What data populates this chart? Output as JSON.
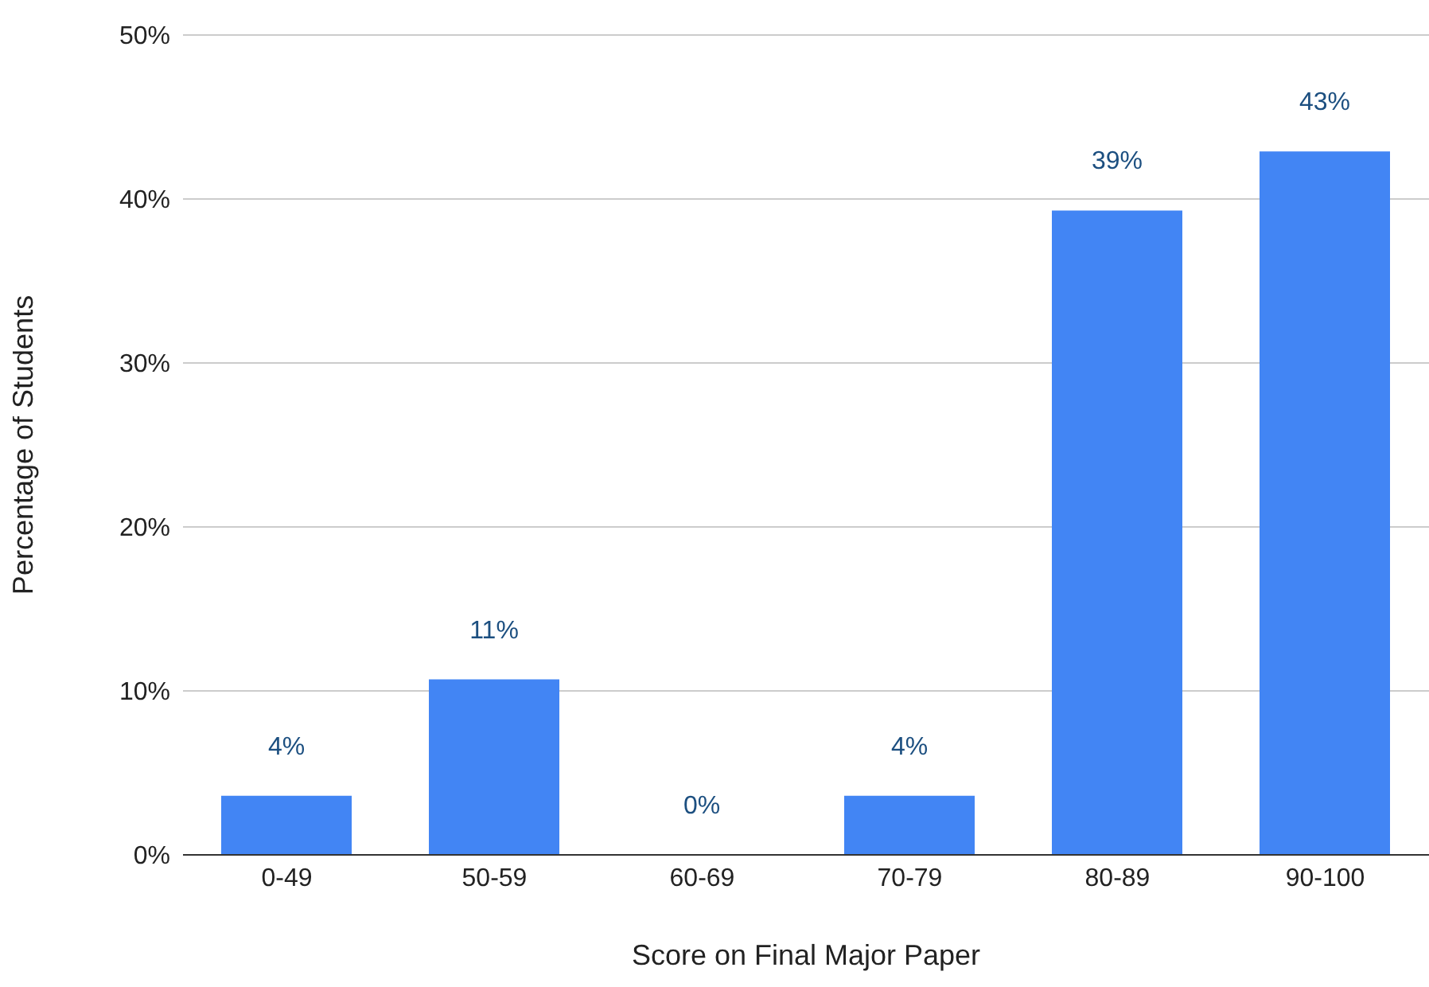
{
  "chart_data": {
    "type": "bar",
    "xlabel": "Score on Final Major Paper",
    "ylabel": "Percentage of Students",
    "categories": [
      "0-49",
      "50-59",
      "60-69",
      "70-79",
      "80-89",
      "90-100"
    ],
    "values": [
      3.6,
      10.7,
      0,
      3.6,
      39.3,
      42.9
    ],
    "value_labels": [
      "4%",
      "11%",
      "0%",
      "4%",
      "39%",
      "43%"
    ],
    "color": "#4285f4",
    "ylim": [
      0,
      50
    ],
    "yticks": [
      {
        "value": 0,
        "label": "0%"
      },
      {
        "value": 10,
        "label": "10%"
      },
      {
        "value": 20,
        "label": "20%"
      },
      {
        "value": 30,
        "label": "30%"
      },
      {
        "value": 40,
        "label": "40%"
      },
      {
        "value": 50,
        "label": "50%"
      }
    ],
    "grid": "y",
    "legend": false
  }
}
